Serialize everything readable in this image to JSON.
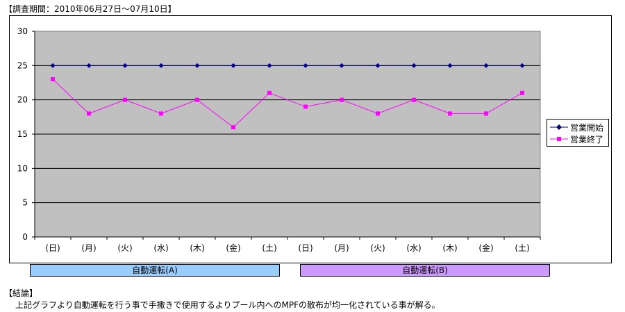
{
  "header": {
    "survey_period": "【調査期間：2010年06月27日～07月10日】"
  },
  "colors": {
    "plot_bg": "#C0C0C0",
    "open": "#000080",
    "close": "#FF00FF"
  },
  "chart_data": {
    "type": "line",
    "categories": [
      "(日)",
      "(月)",
      "(火)",
      "(水)",
      "(木)",
      "(金)",
      "(土)",
      "(日)",
      "(月)",
      "(火)",
      "(水)",
      "(木)",
      "(金)",
      "(土)"
    ],
    "series": [
      {
        "name": "営業開始",
        "color": "#000080",
        "marker": "diamond",
        "values": [
          25,
          25,
          25,
          25,
          25,
          25,
          25,
          25,
          25,
          25,
          25,
          25,
          25,
          25
        ]
      },
      {
        "name": "営業終了",
        "color": "#FF00FF",
        "marker": "square",
        "values": [
          23,
          18,
          20,
          18,
          20,
          16,
          21,
          19,
          20,
          18,
          20,
          18,
          18,
          21
        ]
      }
    ],
    "ylim": [
      0,
      30
    ],
    "yticks": [
      "0",
      "5",
      "10",
      "15",
      "20",
      "25",
      "30"
    ],
    "grid": true,
    "legend_position": "right"
  },
  "modes": [
    {
      "label": "自動運転(A)",
      "color": "#99CCFF"
    },
    {
      "label": "自動運転(B)",
      "color": "#CC99FF"
    }
  ],
  "conclusion": {
    "title": "【結論】",
    "text": "上記グラフより自動運転を行う事で手撒きで使用するよりプール内へのMPFの散布が均一化されている事が解る。"
  }
}
